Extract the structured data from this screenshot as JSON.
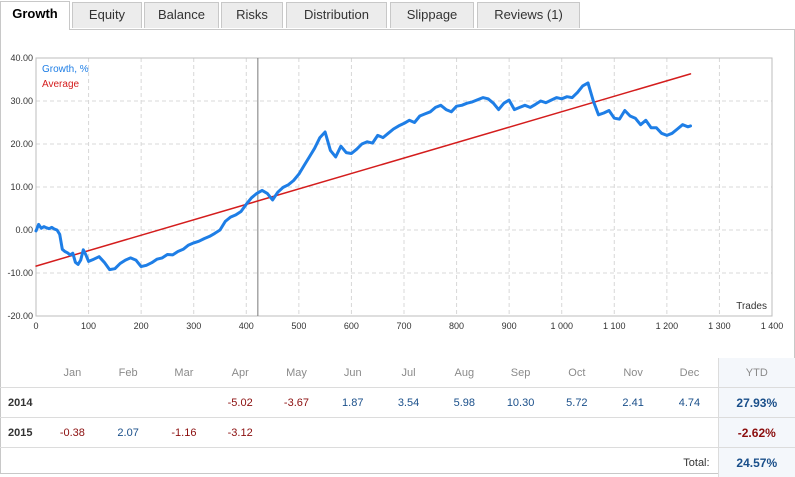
{
  "tabs": [
    {
      "label": "Growth",
      "active": true
    },
    {
      "label": "Equity",
      "active": false
    },
    {
      "label": "Balance",
      "active": false
    },
    {
      "label": "Risks",
      "active": false
    },
    {
      "label": "Distribution",
      "active": false
    },
    {
      "label": "Slippage",
      "active": false
    },
    {
      "label": "Reviews (1)",
      "active": false
    }
  ],
  "chart_data": {
    "type": "line",
    "xlabel": "Trades",
    "ylabel": "",
    "xlim": [
      0,
      1400
    ],
    "ylim": [
      -20,
      40
    ],
    "x_ticks": [
      "0",
      "100",
      "200",
      "300",
      "400",
      "500",
      "600",
      "700",
      "800",
      "900",
      "1 000",
      "1 100",
      "1 200",
      "1 300",
      "1 400"
    ],
    "y_ticks": [
      "-20.00",
      "-10.00",
      "0.00",
      "10.00",
      "20.00",
      "30.00",
      "40.00"
    ],
    "grid": true,
    "legend_position": "top-left",
    "marker_x": 422,
    "series": [
      {
        "name": "Growth, %",
        "color": "#1e7ee6",
        "x": [
          0,
          5,
          10,
          15,
          20,
          25,
          30,
          35,
          40,
          45,
          50,
          55,
          60,
          65,
          70,
          75,
          80,
          85,
          90,
          95,
          100,
          110,
          120,
          130,
          140,
          150,
          160,
          170,
          180,
          190,
          200,
          210,
          220,
          230,
          240,
          250,
          260,
          270,
          280,
          290,
          300,
          310,
          320,
          330,
          340,
          350,
          360,
          370,
          380,
          390,
          400,
          410,
          420,
          430,
          440,
          450,
          460,
          470,
          480,
          490,
          500,
          510,
          520,
          530,
          540,
          550,
          560,
          570,
          580,
          590,
          600,
          610,
          620,
          630,
          640,
          650,
          660,
          670,
          680,
          690,
          700,
          710,
          720,
          730,
          740,
          750,
          760,
          770,
          780,
          790,
          800,
          810,
          820,
          830,
          840,
          850,
          860,
          870,
          880,
          890,
          900,
          910,
          920,
          930,
          940,
          950,
          960,
          970,
          980,
          990,
          1000,
          1010,
          1020,
          1030,
          1040,
          1050,
          1060,
          1070,
          1080,
          1090,
          1100,
          1110,
          1120,
          1130,
          1140,
          1150,
          1160,
          1170,
          1180,
          1190,
          1200,
          1210,
          1220,
          1230,
          1240,
          1245
        ],
        "values": [
          -0.2,
          1.3,
          0.4,
          0.8,
          0.5,
          0.3,
          0.6,
          0.2,
          0.0,
          -1.0,
          -4.5,
          -5.0,
          -5.3,
          -5.8,
          -5.4,
          -7.5,
          -8.0,
          -7.0,
          -4.6,
          -5.8,
          -7.3,
          -6.8,
          -6.2,
          -7.5,
          -9.2,
          -9.0,
          -7.8,
          -7.0,
          -6.5,
          -7.0,
          -8.5,
          -8.2,
          -7.6,
          -6.8,
          -6.5,
          -5.7,
          -5.8,
          -5.0,
          -4.5,
          -3.5,
          -3.0,
          -2.6,
          -2.0,
          -1.5,
          -0.8,
          0.0,
          2.0,
          3.0,
          3.5,
          4.3,
          6.0,
          7.5,
          8.5,
          9.2,
          8.5,
          7.0,
          8.8,
          9.9,
          10.5,
          11.5,
          13.0,
          15.0,
          17.0,
          19.0,
          21.5,
          22.8,
          18.5,
          17.0,
          19.5,
          18.0,
          17.8,
          18.8,
          20.0,
          20.5,
          20.2,
          22.0,
          21.5,
          22.5,
          23.5,
          24.2,
          24.8,
          25.5,
          25.0,
          26.5,
          27.0,
          27.5,
          28.5,
          29.0,
          28.0,
          27.5,
          28.8,
          29.0,
          29.5,
          29.8,
          30.3,
          30.8,
          30.5,
          29.5,
          28.0,
          29.5,
          30.2,
          28.0,
          28.5,
          29.0,
          28.5,
          29.2,
          30.0,
          29.6,
          30.2,
          30.8,
          30.5,
          31.0,
          30.8,
          32.0,
          33.5,
          34.2,
          30.0,
          26.8,
          27.2,
          27.8,
          26.0,
          25.8,
          27.8,
          26.5,
          26.0,
          24.5,
          25.5,
          23.8,
          23.8,
          22.5,
          22.0,
          22.5,
          23.5,
          24.5,
          24.0,
          24.2
        ]
      },
      {
        "name": "Average",
        "color": "#d41d1d",
        "x": [
          0,
          1245
        ],
        "values": [
          -8.4,
          36.3
        ]
      }
    ]
  },
  "yearly": {
    "months": [
      "Jan",
      "Feb",
      "Mar",
      "Apr",
      "May",
      "Jun",
      "Jul",
      "Aug",
      "Sep",
      "Oct",
      "Nov",
      "Dec"
    ],
    "ytd_label": "YTD",
    "rows": [
      {
        "year": "2014",
        "values": [
          "",
          "",
          "",
          "-5.02",
          "-3.67",
          "1.87",
          "3.54",
          "5.98",
          "10.30",
          "5.72",
          "2.41",
          "4.74"
        ],
        "ytd": "27.93%"
      },
      {
        "year": "2015",
        "values": [
          "-0.38",
          "2.07",
          "-1.16",
          "-3.12",
          "",
          "",
          "",
          "",
          "",
          "",
          "",
          ""
        ],
        "ytd": "-2.62%"
      }
    ],
    "total_label": "Total:",
    "total_value": "24.57%"
  }
}
